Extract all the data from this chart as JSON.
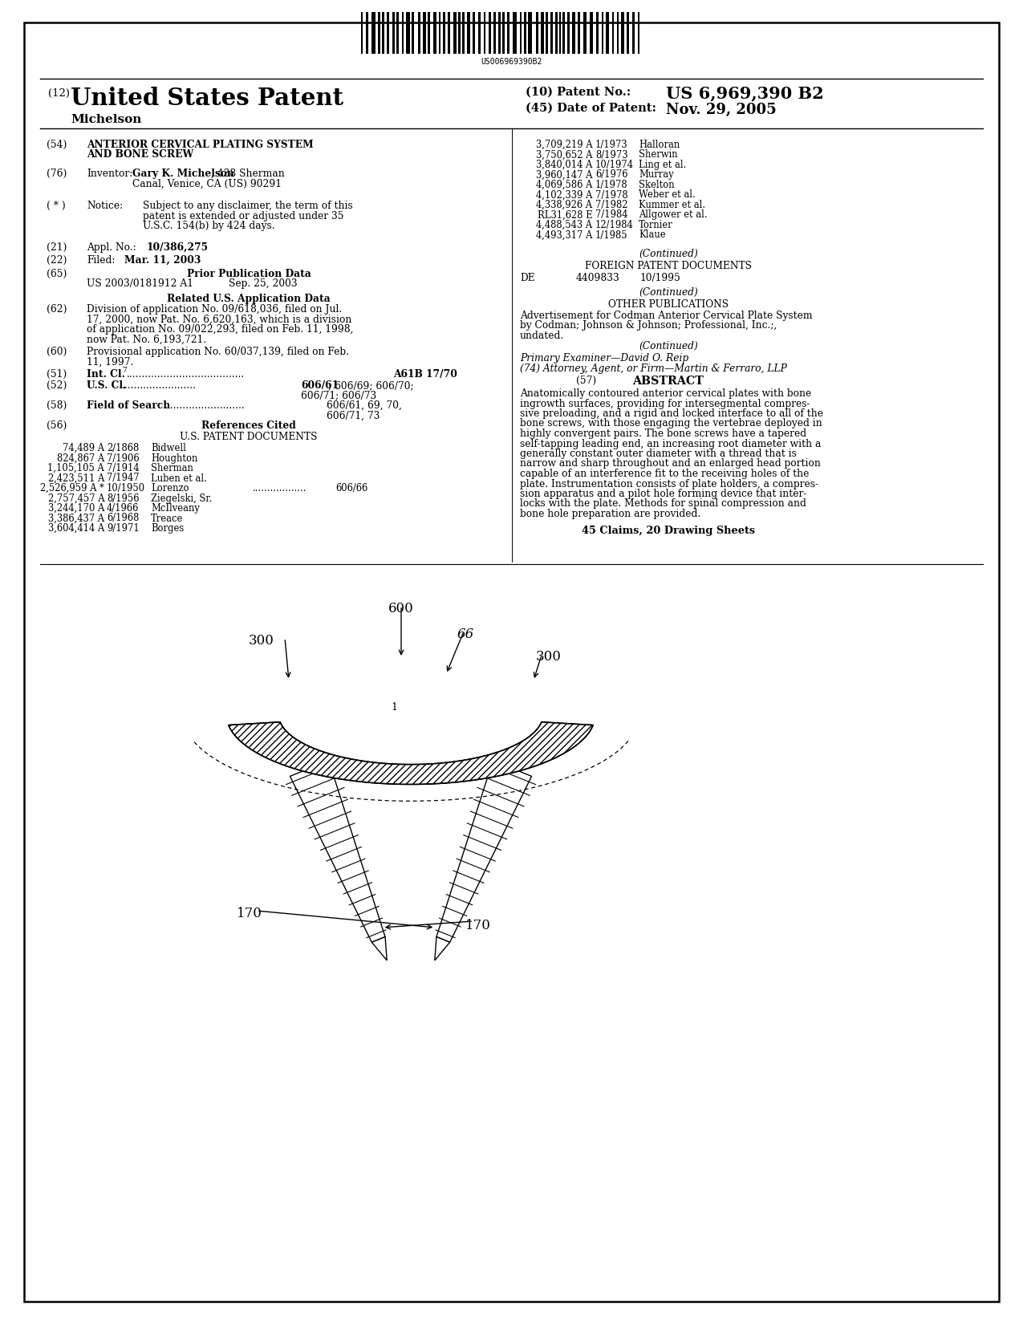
{
  "background_color": "#ffffff",
  "barcode_text": "US006969390B2",
  "title_number": "(12)",
  "title_main": "United States Patent",
  "inventor_name": "Michelson",
  "patent_no_label": "(10) Patent No.:",
  "patent_no_value": "US 6,969,390 B2",
  "date_label": "(45) Date of Patent:",
  "date_value": "Nov. 29, 2005",
  "field54_label": "(54)",
  "field54_line1": "ANTERIOR CERVICAL PLATING SYSTEM",
  "field54_line2": "AND BONE SCREW",
  "field76_label": "(76)",
  "field76_key": "Inventor:",
  "field76_bold": "Gary K. Michelson",
  "field76_rest": ", 438 Sherman",
  "field76_line2": "Canal, Venice, CA (US) 90291",
  "fieldstar_label": "( * )",
  "fieldstar_key": "Notice:",
  "fieldstar_line1": "Subject to any disclaimer, the term of this",
  "fieldstar_line2": "patent is extended or adjusted under 35",
  "fieldstar_line3": "U.S.C. 154(b) by 424 days.",
  "field21_label": "(21)",
  "field21_key": "Appl. No.:",
  "field21_value": "10/386,275",
  "field22_label": "(22)",
  "field22_key": "Filed:",
  "field22_value": "Mar. 11, 2003",
  "field65_label": "(65)",
  "field65_header": "Prior Publication Data",
  "field65_line1": "US 2003/0181912 A1",
  "field65_line1b": "Sep. 25, 2003",
  "related_header": "Related U.S. Application Data",
  "field62_label": "(62)",
  "field62_lines": [
    "Division of application No. 09/618,036, filed on Jul.",
    "17, 2000, now Pat. No. 6,620,163, which is a division",
    "of application No. 09/022,293, filed on Feb. 11, 1998,",
    "now Pat. No. 6,193,721."
  ],
  "field60_label": "(60)",
  "field60_lines": [
    "Provisional application No. 60/037,139, filed on Feb.",
    "11, 1997."
  ],
  "field51_label": "(51)",
  "field51_key": "Int. Cl.",
  "field51_super": "7",
  "field51_value": "A61B 17/70",
  "field52_label": "(52)",
  "field52_key": "U.S. Cl.",
  "field52_value1": "606/61",
  "field52_value2": "; 606/69; 606/70;",
  "field52_value3": "606/71; 606/73",
  "field58_label": "(58)",
  "field58_key": "Field of Search",
  "field58_value1": "606/61, 69, 70,",
  "field58_value2": "606/71, 73",
  "field56_label": "(56)",
  "field56_header": "References Cited",
  "us_patent_header": "U.S. PATENT DOCUMENTS",
  "us_patents": [
    [
      "74,489 A",
      "2/1868",
      "Bidwell",
      ""
    ],
    [
      "824,867 A",
      "7/1906",
      "Houghton",
      ""
    ],
    [
      "1,105,105 A",
      "7/1914",
      "Sherman",
      ""
    ],
    [
      "2,423,511 A",
      "7/1947",
      "Luben et al.",
      ""
    ],
    [
      "2,526,959 A *",
      "10/1950",
      "Lorenzo",
      "606/66"
    ],
    [
      "2,757,457 A",
      "8/1956",
      "Ziegelski, Sr.",
      ""
    ],
    [
      "3,244,170 A",
      "4/1966",
      "McIlveany",
      ""
    ],
    [
      "3,386,437 A",
      "6/1968",
      "Treace",
      ""
    ],
    [
      "3,604,414 A",
      "9/1971",
      "Borges",
      ""
    ]
  ],
  "right_patents": [
    [
      "3,709,219 A",
      "1/1973",
      "Halloran"
    ],
    [
      "3,750,652 A",
      "8/1973",
      "Sherwin"
    ],
    [
      "3,840,014 A",
      "10/1974",
      "Ling et al."
    ],
    [
      "3,960,147 A",
      "6/1976",
      "Murray"
    ],
    [
      "4,069,586 A",
      "1/1978",
      "Skelton"
    ],
    [
      "4,102,339 A",
      "7/1978",
      "Weber et al."
    ],
    [
      "4,338,926 A",
      "7/1982",
      "Kummer et al."
    ],
    [
      "RL31,628 E",
      "7/1984",
      "Allgower et al."
    ],
    [
      "4,488,543 A",
      "12/1984",
      "Tornier"
    ],
    [
      "4,493,317 A",
      "1/1985",
      "Klaue"
    ]
  ],
  "continued1": "(Continued)",
  "foreign_header": "FOREIGN PATENT DOCUMENTS",
  "foreign_country": "DE",
  "foreign_num": "4409833",
  "foreign_date": "10/1995",
  "continued2": "(Continued)",
  "other_header": "OTHER PUBLICATIONS",
  "other_lines": [
    "Advertisement for Codman Anterior Cervical Plate System",
    "by Codman; Johnson & Johnson; Professional, Inc.;,",
    "undated."
  ],
  "continued3": "(Continued)",
  "primary_examiner_label": "Primary Examiner",
  "primary_examiner_name": "David O. Reip",
  "attorney_label": "(74) Attorney, Agent, or Firm",
  "attorney_name": "Martin & Ferraro, LLP",
  "abstract_label": "(57)",
  "abstract_header": "ABSTRACT",
  "abstract_lines": [
    "Anatomically contoured anterior cervical plates with bone",
    "ingrowth surfaces, providing for intersegmental compres-",
    "sive preloading, and a rigid and locked interface to all of the",
    "bone screws, with those engaging the vertebrae deployed in",
    "highly convergent pairs. The bone screws have a tapered",
    "self-tapping leading end, an increasing root diameter with a",
    "generally constant outer diameter with a thread that is",
    "narrow and sharp throughout and an enlarged head portion",
    "capable of an interference fit to the receiving holes of the",
    "plate. Instrumentation consists of plate holders, a compres-",
    "sion apparatus and a pilot hole forming device that inter-",
    "locks with the plate. Methods for spinal compression and",
    "bone hole preparation are provided."
  ],
  "claims_text": "45 Claims, 20 Drawing Sheets"
}
